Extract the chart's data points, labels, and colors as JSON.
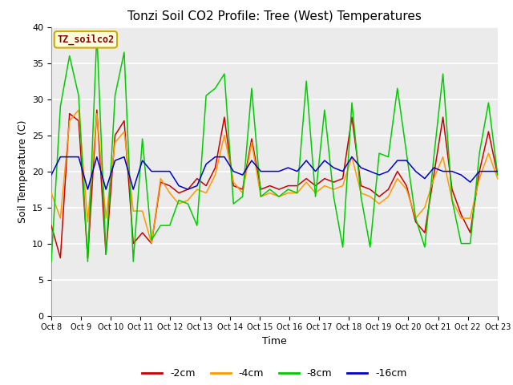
{
  "title": "Tonzi Soil CO2 Profile: Tree (West) Temperatures",
  "xlabel": "Time",
  "ylabel": "Soil Temperature (C)",
  "ylim": [
    0,
    40
  ],
  "yticks": [
    0,
    5,
    10,
    15,
    20,
    25,
    30,
    35,
    40
  ],
  "xtick_labels": [
    "Oct 8",
    "Oct 9",
    "Oct 10",
    "Oct 11",
    "Oct 12",
    "Oct 13",
    "Oct 14",
    "Oct 15",
    "Oct 16",
    "Oct 17",
    "Oct 18",
    "Oct 19",
    "Oct 20",
    "Oct 21",
    "Oct 22",
    "Oct 23"
  ],
  "legend_label": "TZ_soilco2",
  "series_labels": [
    "-2cm",
    "-4cm",
    "-8cm",
    "-16cm"
  ],
  "series_colors": [
    "#cc0000",
    "#ff9900",
    "#00cc00",
    "#0000cc"
  ],
  "bg_color": "#ebebeb",
  "title_fontsize": 11,
  "series_2cm": [
    12.5,
    8.0,
    28.0,
    27.0,
    8.0,
    28.5,
    8.5,
    25.0,
    27.0,
    10.0,
    11.5,
    10.0,
    18.5,
    18.0,
    17.0,
    17.5,
    19.0,
    18.0,
    20.5,
    27.5,
    18.0,
    17.5,
    24.5,
    17.5,
    18.0,
    17.5,
    18.0,
    18.0,
    19.0,
    18.0,
    19.0,
    18.5,
    19.0,
    27.5,
    18.0,
    17.5,
    16.5,
    17.5,
    20.0,
    18.0,
    13.0,
    11.5,
    19.5,
    27.5,
    17.5,
    14.0,
    11.5,
    20.0,
    25.5,
    19.5
  ],
  "series_4cm": [
    17.0,
    13.5,
    27.0,
    28.5,
    13.0,
    28.0,
    13.5,
    24.0,
    25.5,
    14.5,
    14.5,
    10.0,
    19.0,
    17.0,
    15.5,
    16.0,
    17.5,
    17.0,
    19.5,
    25.0,
    18.5,
    17.0,
    24.0,
    16.5,
    17.0,
    16.5,
    17.0,
    17.0,
    18.5,
    17.0,
    18.0,
    17.5,
    18.0,
    22.0,
    17.0,
    16.5,
    15.5,
    16.5,
    19.0,
    17.5,
    13.5,
    15.0,
    19.0,
    22.0,
    16.0,
    13.5,
    13.5,
    19.0,
    22.5,
    19.0
  ],
  "series_8cm": [
    7.5,
    29.0,
    36.0,
    30.5,
    7.5,
    39.0,
    8.5,
    30.5,
    36.5,
    7.5,
    24.5,
    10.5,
    12.5,
    12.5,
    16.0,
    15.5,
    12.5,
    30.5,
    31.5,
    33.5,
    15.5,
    16.5,
    31.5,
    16.5,
    17.5,
    16.5,
    17.5,
    17.0,
    32.5,
    16.5,
    28.5,
    16.5,
    9.5,
    29.5,
    16.5,
    9.5,
    22.5,
    22.0,
    31.5,
    22.5,
    13.5,
    9.5,
    22.0,
    33.5,
    16.0,
    10.0,
    10.0,
    22.5,
    29.5,
    19.5
  ],
  "series_16cm": [
    19.5,
    22.0,
    22.0,
    22.0,
    17.5,
    22.0,
    17.5,
    21.5,
    22.0,
    17.5,
    21.5,
    20.0,
    20.0,
    20.0,
    18.0,
    17.5,
    18.0,
    21.0,
    22.0,
    22.0,
    20.0,
    19.5,
    21.5,
    20.0,
    20.0,
    20.0,
    20.5,
    20.0,
    21.5,
    20.0,
    21.5,
    20.5,
    20.0,
    22.0,
    20.5,
    20.0,
    19.5,
    20.0,
    21.5,
    21.5,
    20.0,
    19.0,
    20.5,
    20.0,
    20.0,
    19.5,
    18.5,
    20.0,
    20.0,
    20.0
  ]
}
